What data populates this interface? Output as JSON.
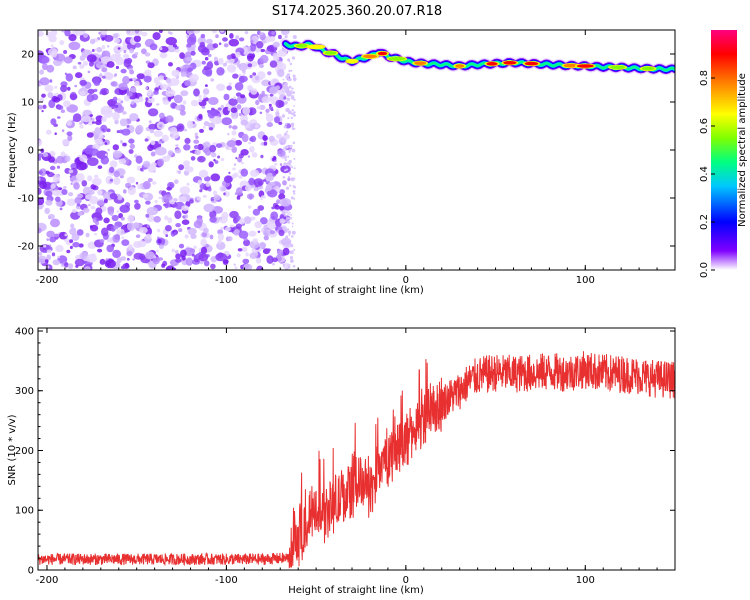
{
  "title": "S174.2025.360.20.07.R18",
  "chart_data": [
    {
      "type": "heatmap",
      "xlabel": "Height of straight line (km)",
      "ylabel": "Frequency (Hz)",
      "xlim": [
        -205,
        150
      ],
      "ylim": [
        -25,
        25
      ],
      "xticks": [
        -200,
        -100,
        0,
        100
      ],
      "yticks": [
        20,
        10,
        0,
        -10,
        -20
      ],
      "noise_region_x": [
        -205,
        -65
      ],
      "signal_track": {
        "x": [
          -67,
          -60,
          -55,
          -50,
          -45,
          -40,
          -35,
          -30,
          -25,
          -20,
          -15,
          -10,
          -5,
          0,
          5,
          10,
          20,
          30,
          40,
          50,
          60,
          70,
          80,
          90,
          100,
          110,
          120,
          130,
          140,
          150
        ],
        "y": [
          22,
          21.5,
          22,
          21.5,
          20.5,
          20,
          19,
          18.5,
          19,
          19.5,
          20.5,
          19.5,
          19,
          18.5,
          18.2,
          18,
          17.8,
          17.5,
          17.8,
          18,
          18.2,
          18,
          17.8,
          17.6,
          17.5,
          17.3,
          17.2,
          17.0,
          16.9,
          16.8
        ]
      },
      "colorbar": {
        "label": "Normalized spectral amplitude",
        "range": [
          0,
          1
        ],
        "ticks": [
          "0.0",
          "0.2",
          "0.4",
          "0.6",
          "0.8"
        ],
        "colors": [
          "#ffffff",
          "#8000ff",
          "#0000ff",
          "#00c8ff",
          "#00ff80",
          "#80ff00",
          "#ffff00",
          "#ff8000",
          "#ff0000",
          "#ff0080"
        ]
      }
    },
    {
      "type": "line",
      "xlabel": "Height of straight line (km)",
      "ylabel": "SNR (10 * v/v)",
      "xlim": [
        -205,
        150
      ],
      "ylim": [
        0,
        405
      ],
      "xticks": [
        -200,
        -100,
        0,
        100
      ],
      "yticks": [
        0,
        100,
        200,
        300,
        400
      ],
      "series": [
        {
          "color": "#e83030",
          "x": [
            -205,
            -180,
            -150,
            -120,
            -100,
            -80,
            -65,
            -60,
            -55,
            -50,
            -45,
            -40,
            -35,
            -30,
            -25,
            -20,
            -15,
            -10,
            -5,
            0,
            5,
            10,
            15,
            20,
            25,
            30,
            35,
            40,
            50,
            60,
            70,
            80,
            90,
            100,
            110,
            120,
            130,
            140,
            150
          ],
          "y": [
            18,
            18,
            18,
            18,
            18,
            18,
            20,
            50,
            80,
            100,
            95,
            110,
            120,
            140,
            150,
            130,
            170,
            190,
            200,
            215,
            235,
            250,
            265,
            280,
            290,
            300,
            315,
            325,
            330,
            328,
            330,
            332,
            330,
            335,
            330,
            328,
            325,
            320,
            318
          ]
        }
      ]
    }
  ]
}
